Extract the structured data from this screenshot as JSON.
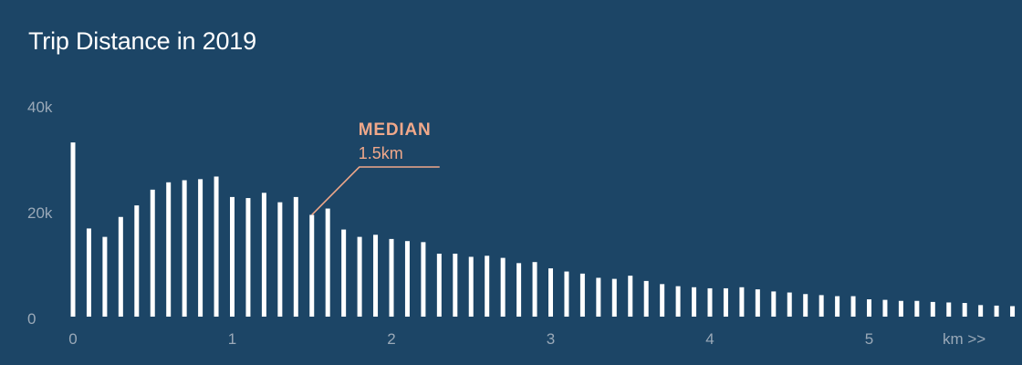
{
  "chart_data": {
    "type": "bar",
    "title": "Trip Distance in 2019",
    "xlabel": "",
    "ylabel": "",
    "x_unit_label": "km >>",
    "ylim": [
      0,
      40000
    ],
    "xlim": [
      0,
      5.9
    ],
    "bin_width": 0.1,
    "y_ticks": [
      {
        "value": 0,
        "label": "0"
      },
      {
        "value": 20000,
        "label": "20k"
      },
      {
        "value": 40000,
        "label": "40k"
      }
    ],
    "x_ticks": [
      {
        "value": 0,
        "label": "0"
      },
      {
        "value": 1,
        "label": "1"
      },
      {
        "value": 2,
        "label": "2"
      },
      {
        "value": 3,
        "label": "3"
      },
      {
        "value": 4,
        "label": "4"
      },
      {
        "value": 5,
        "label": "5"
      }
    ],
    "x": [
      0.0,
      0.1,
      0.2,
      0.3,
      0.4,
      0.5,
      0.6,
      0.7,
      0.8,
      0.9,
      1.0,
      1.1,
      1.2,
      1.3,
      1.4,
      1.5,
      1.6,
      1.7,
      1.8,
      1.9,
      2.0,
      2.1,
      2.2,
      2.3,
      2.4,
      2.5,
      2.6,
      2.7,
      2.8,
      2.9,
      3.0,
      3.1,
      3.2,
      3.3,
      3.4,
      3.5,
      3.6,
      3.7,
      3.8,
      3.9,
      4.0,
      4.1,
      4.2,
      4.3,
      4.4,
      4.5,
      4.6,
      4.7,
      4.8,
      4.9,
      5.0,
      5.1,
      5.2,
      5.3,
      5.4,
      5.5,
      5.6,
      5.7,
      5.8,
      5.9
    ],
    "values": [
      33200,
      16800,
      15200,
      19000,
      21200,
      24200,
      25600,
      26000,
      26200,
      26700,
      22800,
      22600,
      23600,
      21800,
      22800,
      19400,
      20600,
      16600,
      15200,
      15600,
      14800,
      14400,
      14200,
      12000,
      12000,
      11400,
      11600,
      11200,
      10200,
      10400,
      9200,
      8600,
      8200,
      7400,
      7200,
      7800,
      6800,
      6200,
      5800,
      5600,
      5400,
      5400,
      5600,
      5200,
      4800,
      4600,
      4300,
      4100,
      3900,
      3900,
      3300,
      3200,
      3000,
      3000,
      2800,
      2700,
      2600,
      2200,
      2100,
      2000
    ],
    "grid": false,
    "legend": "none",
    "annotation": {
      "label": "MEDIAN",
      "value_label": "1.5km",
      "x": 1.5
    },
    "colors": {
      "background": "#1c4566",
      "bars": "#ffffff",
      "annotation": "#f0a88a",
      "ticks": "#9aa9b8",
      "title": "#ffffff"
    }
  }
}
